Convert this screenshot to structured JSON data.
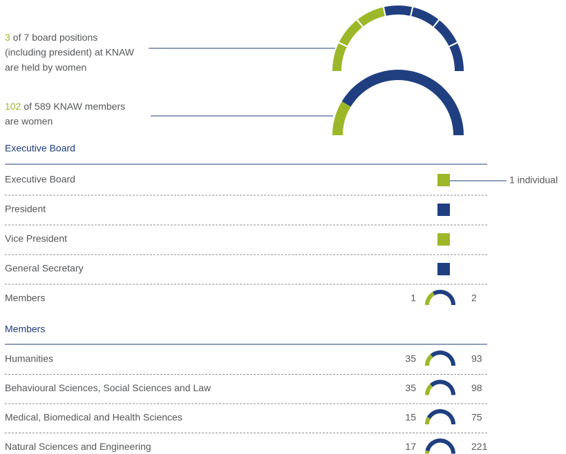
{
  "summary_board": {
    "women": 3,
    "of": "of",
    "total": 7,
    "line1_rest": "board positions",
    "line2": "(including president) at KNAW",
    "line3": "are held by women"
  },
  "summary_members": {
    "women": 102,
    "of": "of",
    "total": 589,
    "line1_rest": "KNAW members",
    "line2": "are women"
  },
  "colors": {
    "women": "#9cb82a",
    "men": "#1f3f80"
  },
  "executive_board": {
    "title": "Executive Board",
    "annotation": "1 individual",
    "rows": [
      {
        "label": "Executive Board",
        "color": "#9cb82a"
      },
      {
        "label": "President",
        "color": "#1f3f80"
      },
      {
        "label": "Vice President",
        "color": "#9cb82a"
      },
      {
        "label": "General Secretary",
        "color": "#1f3f80"
      }
    ],
    "members_row": {
      "label": "Members",
      "women": 1,
      "men": 2
    }
  },
  "members": {
    "title": "Members",
    "rows": [
      {
        "label": "Humanities",
        "women": 35,
        "men": 93
      },
      {
        "label": "Behavioural Sciences, Social Sciences and Law",
        "women": 35,
        "men": 98
      },
      {
        "label": "Medical, Biomedical and Health Sciences",
        "women": 15,
        "men": 75
      },
      {
        "label": "Natural Sciences and Engineering",
        "women": 17,
        "men": 221
      }
    ]
  }
}
